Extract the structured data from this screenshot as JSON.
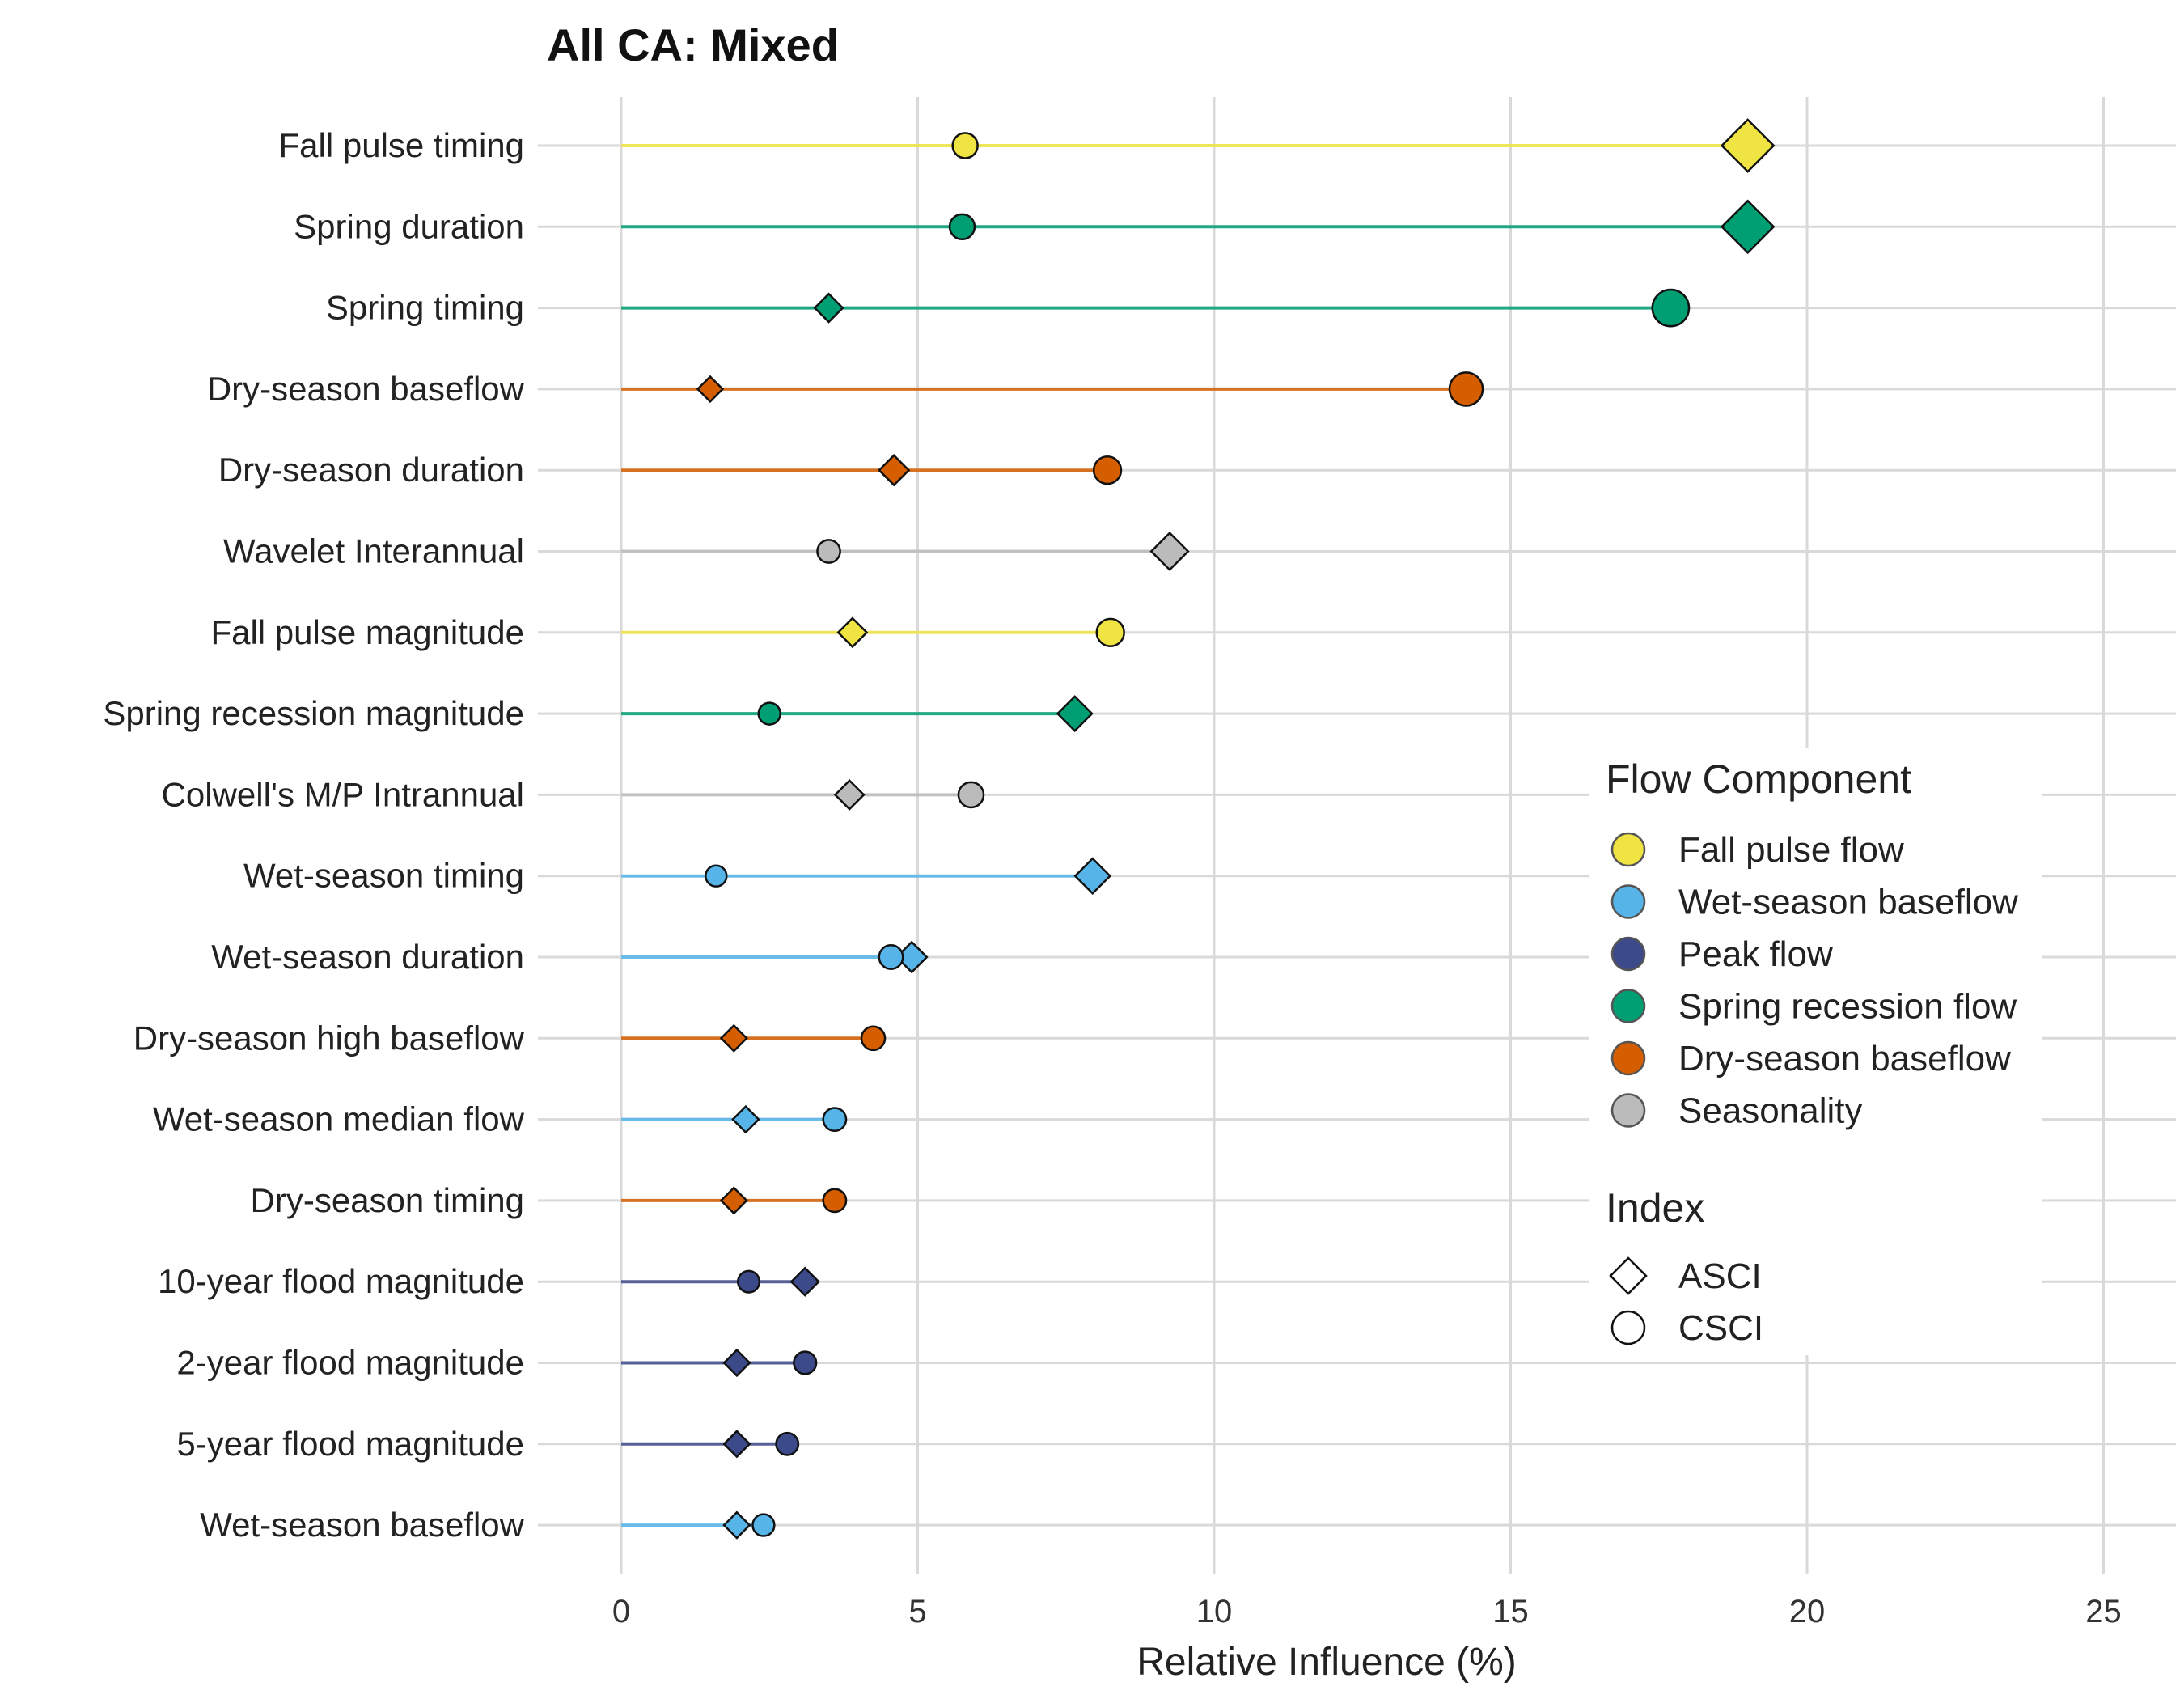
{
  "chart_data": {
    "type": "dot-dumbbell",
    "title": "All CA: Mixed",
    "xlabel": "Relative Influence (%)",
    "xlim": [
      0,
      26
    ],
    "xticks": [
      0,
      5,
      10,
      15,
      20,
      25
    ],
    "grid": true,
    "colors": {
      "Fall pulse flow": "#F0E442",
      "Wet-season baseflow": "#56B4E9",
      "Peak flow": "#3D4A8A",
      "Spring recession flow": "#009E73",
      "Dry-season baseflow": "#D55E00",
      "Seasonality": "#BBBBBB"
    },
    "legend": {
      "position": "right",
      "component_title": "Flow Component",
      "components": [
        "Fall pulse flow",
        "Wet-season baseflow",
        "Peak flow",
        "Spring recession flow",
        "Dry-season baseflow",
        "Seasonality"
      ],
      "index_title": "Index",
      "indices": [
        "ASCI",
        "CSCI"
      ]
    },
    "rows": [
      {
        "label": "Fall pulse timing",
        "component": "Fall pulse flow",
        "ASCI": 19.0,
        "CSCI": 5.8
      },
      {
        "label": "Spring duration",
        "component": "Spring recession flow",
        "ASCI": 19.0,
        "CSCI": 5.75
      },
      {
        "label": "Spring timing",
        "component": "Spring recession flow",
        "ASCI": 3.5,
        "CSCI": 17.7
      },
      {
        "label": "Dry-season baseflow",
        "component": "Dry-season baseflow",
        "ASCI": 1.5,
        "CSCI": 14.25
      },
      {
        "label": "Dry-season duration",
        "component": "Dry-season baseflow",
        "ASCI": 4.6,
        "CSCI": 8.2
      },
      {
        "label": "Wavelet Interannual",
        "component": "Seasonality",
        "ASCI": 9.25,
        "CSCI": 3.5
      },
      {
        "label": "Fall pulse magnitude",
        "component": "Fall pulse flow",
        "ASCI": 3.9,
        "CSCI": 8.25
      },
      {
        "label": "Spring recession magnitude",
        "component": "Spring recession flow",
        "ASCI": 7.65,
        "CSCI": 2.5
      },
      {
        "label": "Colwell's M/P Intrannual",
        "component": "Seasonality",
        "ASCI": 3.85,
        "CSCI": 5.9
      },
      {
        "label": "Wet-season timing",
        "component": "Wet-season baseflow",
        "ASCI": 7.95,
        "CSCI": 1.6
      },
      {
        "label": "Wet-season duration",
        "component": "Wet-season baseflow",
        "ASCI": 4.9,
        "CSCI": 4.55
      },
      {
        "label": "Dry-season high baseflow",
        "component": "Dry-season baseflow",
        "ASCI": 1.9,
        "CSCI": 4.25
      },
      {
        "label": "Wet-season median flow",
        "component": "Wet-season baseflow",
        "ASCI": 2.1,
        "CSCI": 3.6
      },
      {
        "label": "Dry-season timing",
        "component": "Dry-season baseflow",
        "ASCI": 1.9,
        "CSCI": 3.6
      },
      {
        "label": "10-year flood magnitude",
        "component": "Peak flow",
        "ASCI": 3.1,
        "CSCI": 2.15
      },
      {
        "label": "2-year flood magnitude",
        "component": "Peak flow",
        "ASCI": 1.95,
        "CSCI": 3.1
      },
      {
        "label": "5-year flood magnitude",
        "component": "Peak flow",
        "ASCI": 1.95,
        "CSCI": 2.8
      },
      {
        "label": "Wet-season baseflow",
        "component": "Wet-season baseflow",
        "ASCI": 1.95,
        "CSCI": 2.4
      }
    ]
  }
}
